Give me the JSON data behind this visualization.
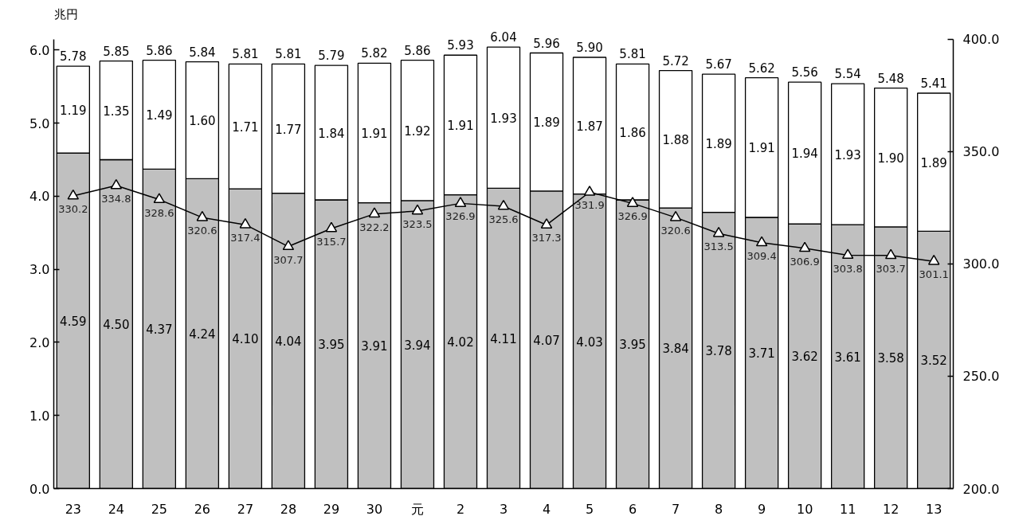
{
  "chart_data": {
    "type": "bar",
    "stacked": true,
    "ylabel": "兆円",
    "categories": [
      "23",
      "24",
      "25",
      "26",
      "27",
      "28",
      "29",
      "30",
      "元",
      "2",
      "3",
      "4",
      "5",
      "6",
      "7",
      "8",
      "9",
      "10",
      "11",
      "12",
      "13"
    ],
    "series": [
      {
        "color": "#c0c0c0",
        "values": [
          4.59,
          4.5,
          4.37,
          4.24,
          4.1,
          4.04,
          3.95,
          3.91,
          3.94,
          4.02,
          4.11,
          4.07,
          4.03,
          3.95,
          3.84,
          3.78,
          3.71,
          3.62,
          3.61,
          3.58,
          3.52
        ],
        "value_labels": [
          "4.59",
          "4.50",
          "4.37",
          "4.24",
          "4.10",
          "4.04",
          "3.95",
          "3.91",
          "3.94",
          "4.02",
          "4.11",
          "4.07",
          "4.03",
          "3.95",
          "3.84",
          "3.78",
          "3.71",
          "3.62",
          "3.61",
          "3.58",
          "3.52"
        ]
      },
      {
        "color": "#ffffff",
        "values": [
          1.19,
          1.35,
          1.49,
          1.6,
          1.71,
          1.77,
          1.84,
          1.91,
          1.92,
          1.91,
          1.93,
          1.89,
          1.87,
          1.86,
          1.88,
          1.89,
          1.91,
          1.94,
          1.93,
          1.9,
          1.89
        ],
        "value_labels": [
          "1.19",
          "1.35",
          "1.49",
          "1.60",
          "1.71",
          "1.77",
          "1.84",
          "1.91",
          "1.92",
          "1.91",
          "1.93",
          "1.89",
          "1.87",
          "1.86",
          "1.88",
          "1.89",
          "1.91",
          "1.94",
          "1.93",
          "1.90",
          "1.89"
        ]
      },
      {
        "type": "line",
        "axis": "y2",
        "color": "#000000",
        "marker": "triangle",
        "values": [
          330.2,
          334.8,
          328.6,
          320.6,
          317.4,
          307.7,
          315.7,
          322.2,
          323.5,
          326.9,
          325.6,
          317.3,
          331.9,
          326.9,
          320.6,
          313.5,
          309.4,
          306.9,
          303.8,
          303.7,
          301.1
        ],
        "value_labels": [
          "330.2",
          "334.8",
          "328.6",
          "320.6",
          "317.4",
          "307.7",
          "315.7",
          "322.2",
          "323.5",
          "326.9",
          "325.6",
          "317.3",
          "331.9",
          "326.9",
          "320.6",
          "313.5",
          "309.4",
          "306.9",
          "303.8",
          "303.7",
          "301.1"
        ]
      }
    ],
    "totals": [
      "5.78",
      "5.85",
      "5.86",
      "5.84",
      "5.81",
      "5.81",
      "5.79",
      "5.82",
      "5.86",
      "5.93",
      "6.04",
      "5.96",
      "5.90",
      "5.81",
      "5.72",
      "5.67",
      "5.62",
      "5.56",
      "5.54",
      "5.48",
      "5.41"
    ],
    "ylim": [
      0,
      6.15
    ],
    "yticks": [
      {
        "value": 0,
        "label": "0.0"
      },
      {
        "value": 1,
        "label": "1.0"
      },
      {
        "value": 2,
        "label": "2.0"
      },
      {
        "value": 3,
        "label": "3.0"
      },
      {
        "value": 4,
        "label": "4.0"
      },
      {
        "value": 5,
        "label": "5.0"
      },
      {
        "value": 6,
        "label": "6.0"
      }
    ],
    "y2lim": [
      200,
      400
    ],
    "y2ticks": [
      {
        "value": 200,
        "label": "200.0"
      },
      {
        "value": 250,
        "label": "250.0"
      },
      {
        "value": 300,
        "label": "300.0"
      },
      {
        "value": 350,
        "label": "350.0"
      },
      {
        "value": 400,
        "label": "400.0"
      }
    ],
    "grid": false
  }
}
